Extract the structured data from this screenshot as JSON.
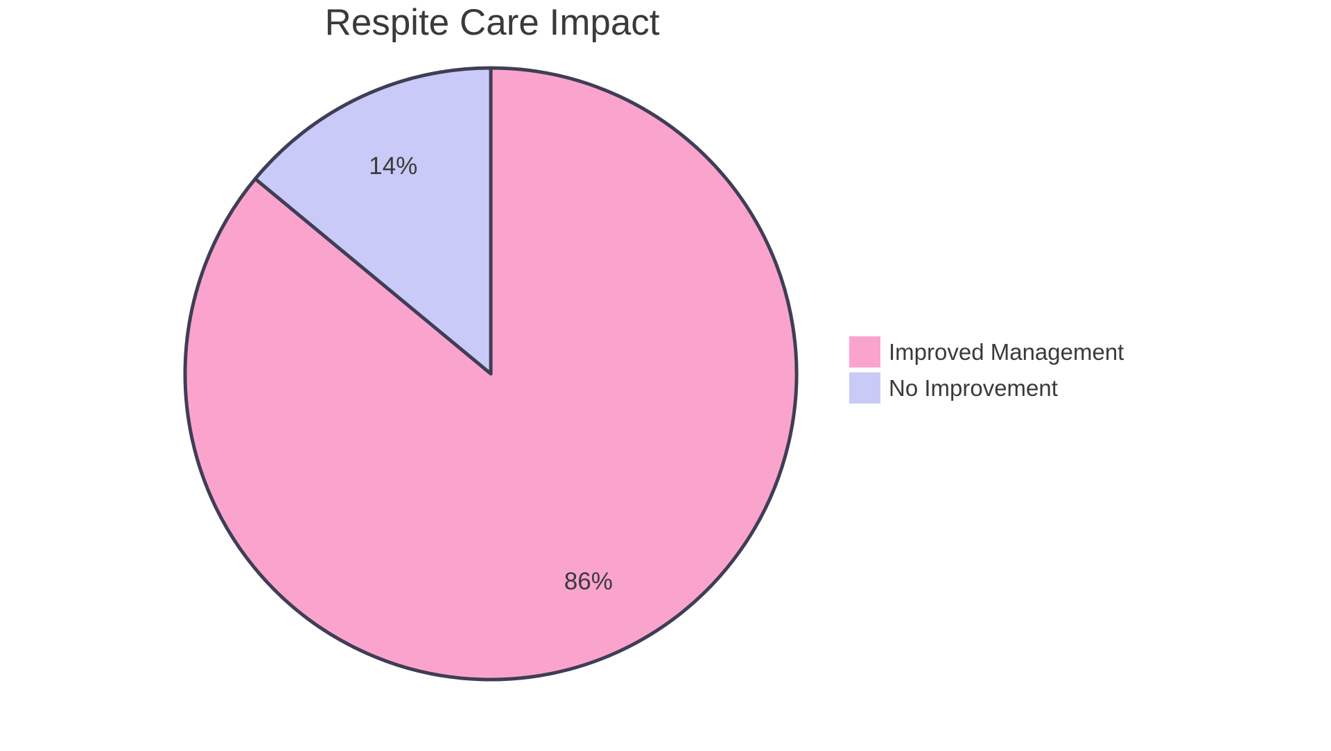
{
  "title": "Respite Care Impact",
  "colors": {
    "background": "#FFFFFF",
    "text": "#3A3A3A",
    "outline": "#403D56",
    "pink": "#FAA4CD",
    "lavender": "#CACAF8"
  },
  "chart_data": {
    "type": "pie",
    "title": "Respite Care Impact",
    "labels": [
      "Improved Management",
      "No Improvement"
    ],
    "values": [
      86,
      14
    ],
    "value_labels": [
      "86%",
      "14%"
    ],
    "slice_colors": [
      "#FAA4CD",
      "#CACAF8"
    ],
    "border_color": "#403D56",
    "border_width": 5,
    "start_angle_deg": 0,
    "direction": "clockwise",
    "legend_position": "right",
    "grid": false
  },
  "legend": {
    "items": [
      {
        "label": "Improved Management",
        "color": "#FAA4CD"
      },
      {
        "label": "No Improvement",
        "color": "#CACAF8"
      }
    ]
  }
}
